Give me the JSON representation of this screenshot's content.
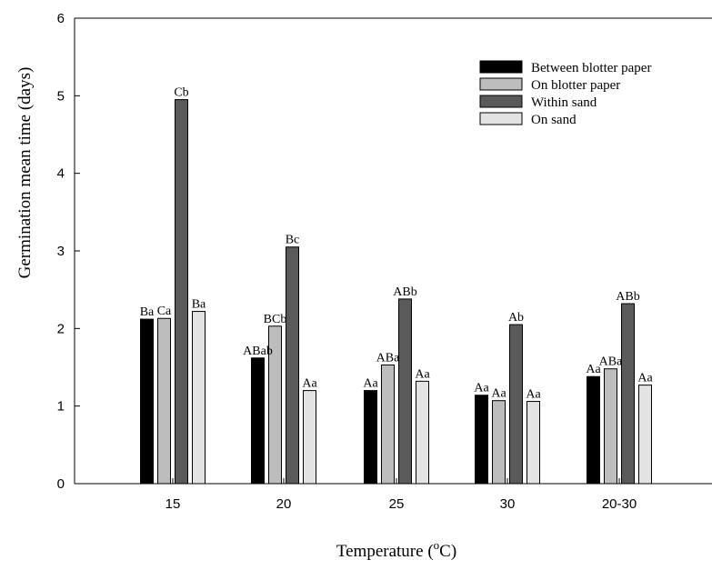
{
  "chart_data": {
    "type": "bar",
    "title": "",
    "xlabel_main": "Temperature (",
    "xlabel_sup": "o",
    "xlabel_unit": "C)",
    "ylabel": "Germination mean time (days)",
    "ylim": [
      0,
      6
    ],
    "yticks": [
      "0",
      "1",
      "2",
      "3",
      "4",
      "5",
      "6"
    ],
    "categories": [
      "15",
      "20",
      "25",
      "30",
      "20-30"
    ],
    "legend_position": "top-right",
    "series": [
      {
        "name": "Between  blotter paper",
        "color": "#000000",
        "values": [
          2.12,
          1.62,
          1.2,
          1.14,
          1.38
        ],
        "labels": [
          "Ba",
          "ABab",
          "Aa",
          "Aa",
          "Aa"
        ]
      },
      {
        "name": "On blotter paper",
        "color": "#bdbdbd",
        "values": [
          2.13,
          2.03,
          1.53,
          1.07,
          1.48
        ],
        "labels": [
          "Ca",
          "BCb",
          "ABa",
          "Aa",
          "ABa"
        ]
      },
      {
        "name": "Within sand",
        "color": "#5a5a5a",
        "values": [
          4.95,
          3.05,
          2.38,
          2.05,
          2.32
        ],
        "labels": [
          "Cb",
          "Bc",
          "ABb",
          "Ab",
          "ABb"
        ]
      },
      {
        "name": "On sand",
        "color": "#e3e3e3",
        "values": [
          2.22,
          1.2,
          1.32,
          1.06,
          1.27
        ],
        "labels": [
          "Ba",
          "Aa",
          "Aa",
          "Aa",
          "Aa"
        ]
      }
    ]
  }
}
